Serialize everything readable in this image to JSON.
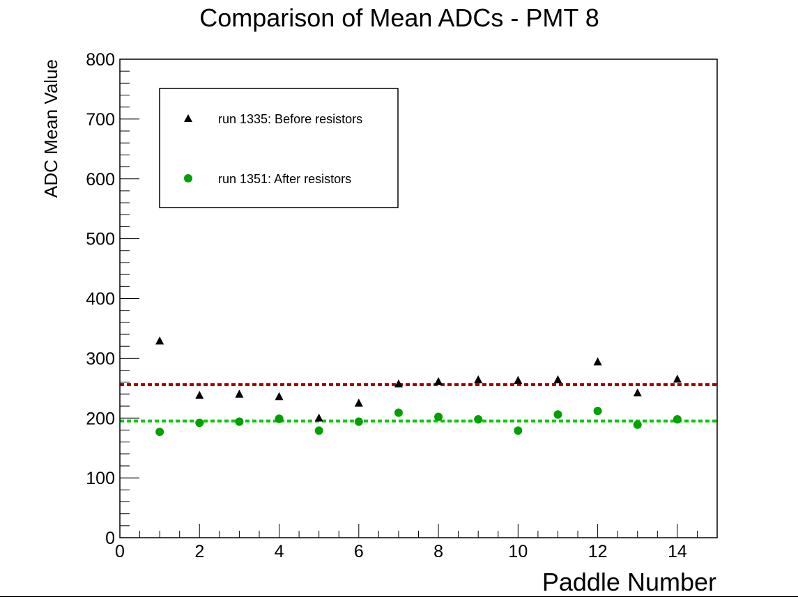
{
  "chart_data": {
    "type": "scatter",
    "title": "Comparison of Mean ADCs - PMT 8",
    "xlabel": "Paddle Number",
    "ylabel": "ADC Mean Value",
    "xlim": [
      0,
      15
    ],
    "ylim": [
      0,
      800
    ],
    "x_ticks": [
      "0",
      "2",
      "4",
      "6",
      "8",
      "10",
      "12",
      "14"
    ],
    "y_ticks": [
      "0",
      "100",
      "200",
      "300",
      "400",
      "500",
      "600",
      "700",
      "800"
    ],
    "grid": false,
    "legend_position": "top-left",
    "series": [
      {
        "name": "run 1335: Before resistors",
        "marker": "triangle",
        "color": "#000000",
        "x": [
          1,
          2,
          3,
          4,
          5,
          6,
          7,
          8,
          9,
          10,
          11,
          12,
          13,
          14
        ],
        "y": [
          329,
          238,
          240,
          236,
          200,
          225,
          257,
          261,
          264,
          263,
          264,
          294,
          242,
          265
        ]
      },
      {
        "name": "run 1351: After resistors",
        "marker": "circle",
        "color": "#00a000",
        "x": [
          1,
          2,
          3,
          4,
          5,
          6,
          7,
          8,
          9,
          10,
          11,
          12,
          13,
          14
        ],
        "y": [
          177,
          192,
          194,
          199,
          179,
          194,
          209,
          202,
          198,
          179,
          206,
          212,
          189,
          198
        ]
      }
    ],
    "reference_lines": [
      {
        "y": 256,
        "color": "#a00000",
        "style": "dotted"
      },
      {
        "y": 195,
        "color": "#00cc00",
        "style": "dotted"
      }
    ]
  }
}
